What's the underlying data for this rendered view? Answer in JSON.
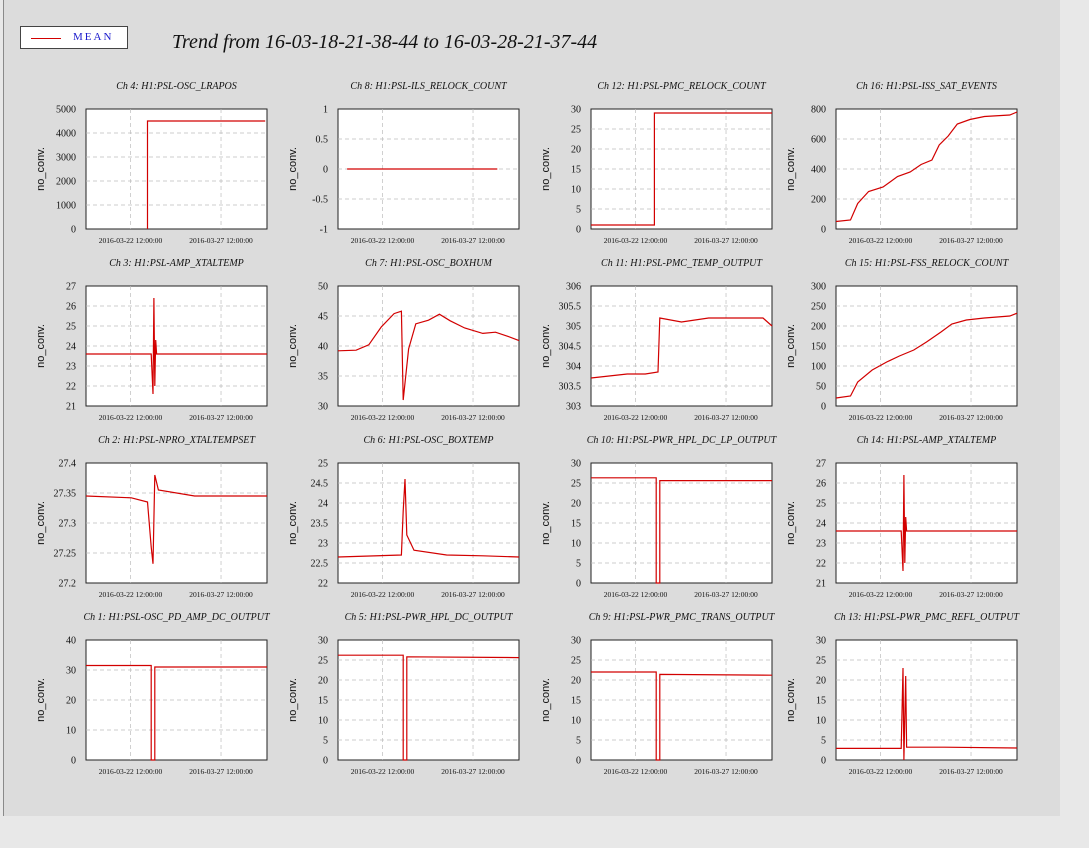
{
  "title": "Trend from 16-03-18-21-38-44 to 16-03-28-21-37-44",
  "legend": {
    "label": "MEAN",
    "color": "#d20000"
  },
  "x_tick_labels": [
    "2016-03-22 12:00:00",
    "2016-03-27 12:00:00"
  ],
  "chart_data": [
    {
      "type": "line",
      "title": "Ch 4: H1:PSL-OSC_LRAPOS",
      "ylabel": "no_conv.",
      "yticks": [
        "0",
        "1000",
        "2000",
        "3000",
        "4000",
        "5000"
      ],
      "ylim": [
        0,
        5000
      ],
      "series": [
        {
          "name": "MEAN",
          "points": [
            [
              3.4,
              0
            ],
            [
              3.4,
              4500
            ],
            [
              9.9,
              4500
            ]
          ]
        }
      ]
    },
    {
      "type": "line",
      "title": "Ch 8: H1:PSL-ILS_RELOCK_COUNT",
      "ylabel": "no_conv.",
      "yticks": [
        "-1",
        "-0.5",
        "0",
        "0.5",
        "1"
      ],
      "ylim": [
        -1,
        1
      ],
      "series": [
        {
          "name": "MEAN",
          "points": [
            [
              0.5,
              0
            ],
            [
              8.8,
              0
            ]
          ]
        }
      ]
    },
    {
      "type": "line",
      "title": "Ch 12: H1:PSL-PMC_RELOCK_COUNT",
      "ylabel": "no_conv.",
      "yticks": [
        "0",
        "5",
        "10",
        "15",
        "20",
        "25",
        "30"
      ],
      "ylim": [
        0,
        30
      ],
      "series": [
        {
          "name": "MEAN",
          "points": [
            [
              0,
              1
            ],
            [
              3.5,
              1
            ],
            [
              3.5,
              29
            ],
            [
              10,
              29
            ]
          ]
        }
      ]
    },
    {
      "type": "line",
      "title": "Ch 16: H1:PSL-ISS_SAT_EVENTS",
      "ylabel": "no_conv.",
      "yticks": [
        "0",
        "200",
        "400",
        "600",
        "800"
      ],
      "ylim": [
        0,
        800
      ],
      "series": [
        {
          "name": "MEAN",
          "points": [
            [
              0,
              50
            ],
            [
              0.8,
              60
            ],
            [
              1.2,
              170
            ],
            [
              1.8,
              250
            ],
            [
              2.6,
              280
            ],
            [
              3.4,
              350
            ],
            [
              4.1,
              380
            ],
            [
              4.7,
              430
            ],
            [
              5.3,
              460
            ],
            [
              5.7,
              560
            ],
            [
              6.2,
              620
            ],
            [
              6.7,
              700
            ],
            [
              7.4,
              730
            ],
            [
              8.2,
              750
            ],
            [
              9.6,
              760
            ],
            [
              10,
              780
            ]
          ]
        }
      ]
    },
    {
      "type": "line",
      "title": "Ch 3: H1:PSL-AMP_XTALTEMP",
      "ylabel": "no_conv.",
      "yticks": [
        "21",
        "22",
        "23",
        "24",
        "25",
        "26",
        "27"
      ],
      "ylim": [
        21,
        27
      ],
      "series": [
        {
          "name": "MEAN",
          "points": [
            [
              0,
              23.6
            ],
            [
              3.6,
              23.6
            ],
            [
              3.7,
              21.6
            ],
            [
              3.75,
              26.4
            ],
            [
              3.8,
              22.0
            ],
            [
              3.85,
              24.3
            ],
            [
              3.9,
              23.6
            ],
            [
              10,
              23.6
            ]
          ]
        }
      ]
    },
    {
      "type": "line",
      "title": "Ch 7: H1:PSL-OSC_BOXHUM",
      "ylabel": "no_conv.",
      "yticks": [
        "30",
        "35",
        "40",
        "45",
        "50"
      ],
      "ylim": [
        30,
        50
      ],
      "series": [
        {
          "name": "MEAN",
          "points": [
            [
              0,
              39.2
            ],
            [
              1.0,
              39.3
            ],
            [
              1.7,
              40.2
            ],
            [
              2.4,
              43.2
            ],
            [
              3.1,
              45.4
            ],
            [
              3.5,
              45.8
            ],
            [
              3.6,
              31.0
            ],
            [
              3.9,
              39.5
            ],
            [
              4.3,
              43.7
            ],
            [
              5.0,
              44.3
            ],
            [
              5.6,
              45.3
            ],
            [
              6.2,
              44.2
            ],
            [
              7.0,
              43.0
            ],
            [
              8.0,
              42.1
            ],
            [
              8.7,
              42.3
            ],
            [
              9.4,
              41.6
            ],
            [
              10,
              40.9
            ]
          ]
        }
      ]
    },
    {
      "type": "line",
      "title": "Ch 11: H1:PSL-PMC_TEMP_OUTPUT",
      "ylabel": "no_conv.",
      "yticks": [
        "303",
        "303.5",
        "304",
        "304.5",
        "305",
        "305.5",
        "306"
      ],
      "ylim": [
        303,
        306
      ],
      "series": [
        {
          "name": "MEAN",
          "points": [
            [
              0,
              303.7
            ],
            [
              1.0,
              303.75
            ],
            [
              2.0,
              303.8
            ],
            [
              3.0,
              303.8
            ],
            [
              3.7,
              303.85
            ],
            [
              3.8,
              305.2
            ],
            [
              5.0,
              305.1
            ],
            [
              6.5,
              305.2
            ],
            [
              8.0,
              305.2
            ],
            [
              9.5,
              305.2
            ],
            [
              10,
              305.0
            ]
          ]
        }
      ]
    },
    {
      "type": "line",
      "title": "Ch 15: H1:PSL-FSS_RELOCK_COUNT",
      "ylabel": "no_conv.",
      "yticks": [
        "0",
        "50",
        "100",
        "150",
        "200",
        "250",
        "300"
      ],
      "ylim": [
        0,
        300
      ],
      "series": [
        {
          "name": "MEAN",
          "points": [
            [
              0,
              20
            ],
            [
              0.8,
              25
            ],
            [
              1.2,
              60
            ],
            [
              2.0,
              90
            ],
            [
              2.8,
              110
            ],
            [
              3.5,
              125
            ],
            [
              4.3,
              140
            ],
            [
              5.0,
              160
            ],
            [
              5.8,
              185
            ],
            [
              6.4,
              205
            ],
            [
              7.2,
              215
            ],
            [
              8.2,
              220
            ],
            [
              9.6,
              225
            ],
            [
              10,
              232
            ]
          ]
        }
      ]
    },
    {
      "type": "line",
      "title": "Ch 2: H1:PSL-NPRO_XTALTEMPSET",
      "ylabel": "no_conv.",
      "yticks": [
        "27.2",
        "27.25",
        "27.3",
        "27.35",
        "27.4"
      ],
      "ylim": [
        27.2,
        27.4
      ],
      "series": [
        {
          "name": "MEAN",
          "points": [
            [
              0,
              27.345
            ],
            [
              2.5,
              27.342
            ],
            [
              3.4,
              27.335
            ],
            [
              3.6,
              27.26
            ],
            [
              3.7,
              27.232
            ],
            [
              3.8,
              27.38
            ],
            [
              4.0,
              27.355
            ],
            [
              6.0,
              27.345
            ],
            [
              10,
              27.345
            ]
          ]
        }
      ]
    },
    {
      "type": "line",
      "title": "Ch 6: H1:PSL-OSC_BOXTEMP",
      "ylabel": "no_conv.",
      "yticks": [
        "22",
        "22.5",
        "23",
        "23.5",
        "24",
        "24.5",
        "25"
      ],
      "ylim": [
        22,
        25
      ],
      "series": [
        {
          "name": "MEAN",
          "points": [
            [
              0,
              22.65
            ],
            [
              3.5,
              22.7
            ],
            [
              3.6,
              23.8
            ],
            [
              3.7,
              24.6
            ],
            [
              3.8,
              23.2
            ],
            [
              4.2,
              22.82
            ],
            [
              6.0,
              22.7
            ],
            [
              8.0,
              22.68
            ],
            [
              10,
              22.65
            ]
          ]
        }
      ]
    },
    {
      "type": "line",
      "title": "Ch 10: H1:PSL-PWR_HPL_DC_LP_OUTPUT",
      "ylabel": "no_conv.",
      "yticks": [
        "0",
        "5",
        "10",
        "15",
        "20",
        "25",
        "30"
      ],
      "ylim": [
        0,
        30
      ],
      "series": [
        {
          "name": "MEAN",
          "points": [
            [
              0,
              26.3
            ],
            [
              3.6,
              26.3
            ],
            [
              3.6,
              0
            ],
            [
              3.8,
              0
            ],
            [
              3.8,
              25.6
            ],
            [
              10,
              25.6
            ]
          ]
        }
      ]
    },
    {
      "type": "line",
      "title": "Ch 14: H1:PSL-AMP_XTALTEMP",
      "ylabel": "no_conv.",
      "yticks": [
        "21",
        "22",
        "23",
        "24",
        "25",
        "26",
        "27"
      ],
      "ylim": [
        21,
        27
      ],
      "series": [
        {
          "name": "MEAN",
          "points": [
            [
              0,
              23.6
            ],
            [
              3.6,
              23.6
            ],
            [
              3.7,
              21.6
            ],
            [
              3.75,
              26.4
            ],
            [
              3.8,
              22.0
            ],
            [
              3.85,
              24.3
            ],
            [
              3.9,
              23.6
            ],
            [
              10,
              23.6
            ]
          ]
        }
      ]
    },
    {
      "type": "line",
      "title": "Ch 1: H1:PSL-OSC_PD_AMP_DC_OUTPUT",
      "ylabel": "no_conv.",
      "yticks": [
        "0",
        "10",
        "20",
        "30",
        "40"
      ],
      "ylim": [
        0,
        40
      ],
      "series": [
        {
          "name": "MEAN",
          "points": [
            [
              0,
              31.5
            ],
            [
              3.6,
              31.5
            ],
            [
              3.6,
              0
            ],
            [
              3.8,
              0
            ],
            [
              3.8,
              31.0
            ],
            [
              10,
              31.0
            ]
          ]
        }
      ]
    },
    {
      "type": "line",
      "title": "Ch 5: H1:PSL-PWR_HPL_DC_OUTPUT",
      "ylabel": "no_conv.",
      "yticks": [
        "0",
        "5",
        "10",
        "15",
        "20",
        "25",
        "30"
      ],
      "ylim": [
        0,
        30
      ],
      "series": [
        {
          "name": "MEAN",
          "points": [
            [
              0,
              26.2
            ],
            [
              3.6,
              26.2
            ],
            [
              3.6,
              0
            ],
            [
              3.8,
              0
            ],
            [
              3.8,
              25.8
            ],
            [
              10,
              25.6
            ]
          ]
        }
      ]
    },
    {
      "type": "line",
      "title": "Ch 9: H1:PSL-PWR_PMC_TRANS_OUTPUT",
      "ylabel": "no_conv.",
      "yticks": [
        "0",
        "5",
        "10",
        "15",
        "20",
        "25",
        "30"
      ],
      "ylim": [
        0,
        30
      ],
      "series": [
        {
          "name": "MEAN",
          "points": [
            [
              0,
              22.0
            ],
            [
              3.6,
              22.0
            ],
            [
              3.6,
              0
            ],
            [
              3.8,
              0
            ],
            [
              3.8,
              21.4
            ],
            [
              10,
              21.2
            ]
          ]
        }
      ]
    },
    {
      "type": "line",
      "title": "Ch 13: H1:PSL-PWR_PMC_REFL_OUTPUT",
      "ylabel": "no_conv.",
      "yticks": [
        "0",
        "5",
        "10",
        "15",
        "20",
        "25",
        "30"
      ],
      "ylim": [
        0,
        30
      ],
      "series": [
        {
          "name": "MEAN",
          "points": [
            [
              0,
              2.9
            ],
            [
              3.6,
              2.9
            ],
            [
              3.7,
              23.0
            ],
            [
              3.75,
              0
            ],
            [
              3.85,
              21.0
            ],
            [
              3.9,
              3.2
            ],
            [
              6.0,
              3.2
            ],
            [
              10,
              3.0
            ]
          ]
        }
      ]
    }
  ]
}
